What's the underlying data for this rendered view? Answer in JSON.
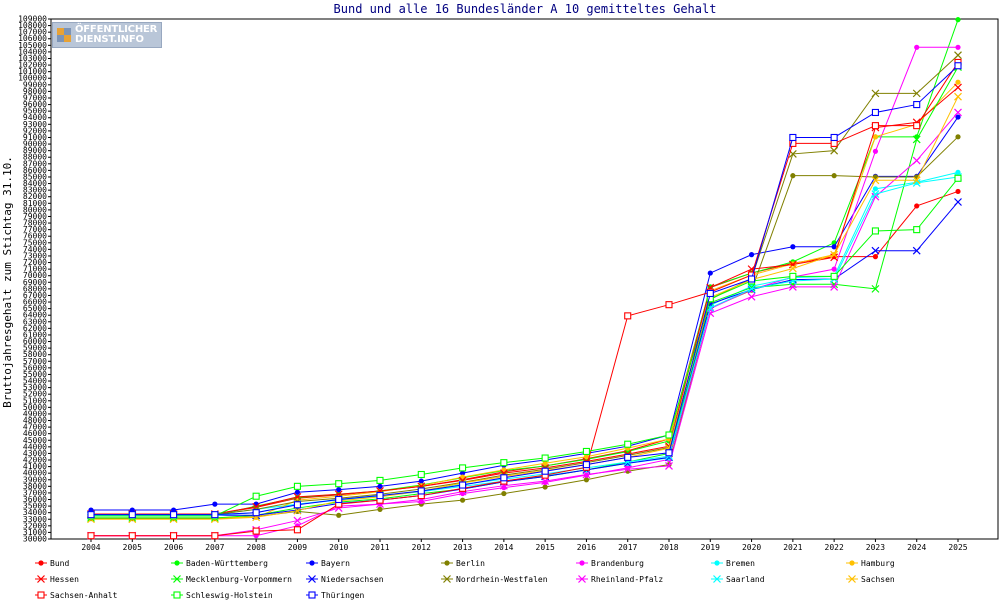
{
  "logo": {
    "line1": "ÖFFENTLICHER",
    "line2": "DIENST.INFO"
  },
  "chart_data": {
    "type": "line",
    "title": "Bund und alle 16 Bundesländer A 10 gemitteltes Gehalt",
    "xlabel": "",
    "ylabel": "Bruttojahresgehalt zum Stichtag 31.10.",
    "ylim": [
      30000,
      109000
    ],
    "ytick_step": 1000,
    "grid": false,
    "legend_position": "bottom",
    "x": [
      "2004",
      "2005",
      "2006",
      "2007",
      "2008",
      "2009",
      "2010",
      "2011",
      "2012",
      "2013",
      "2014",
      "2015",
      "2016",
      "2017",
      "2018",
      "2019",
      "2020",
      "2021",
      "2022",
      "2023",
      "2024",
      "2025"
    ],
    "series": [
      {
        "name": "Bund",
        "color": "#ff0000",
        "marker": "dot",
        "values": [
          33800,
          33800,
          33800,
          33800,
          34800,
          36200,
          36700,
          37300,
          38000,
          39000,
          40200,
          41100,
          42200,
          43400,
          45200,
          68200,
          70400,
          71900,
          72900,
          72900,
          80600,
          82800
        ]
      },
      {
        "name": "Baden-Württemberg",
        "color": "#00ff00",
        "marker": "dot",
        "values": [
          33600,
          33600,
          33600,
          33600,
          35000,
          36300,
          36800,
          37300,
          38200,
          39300,
          40400,
          41100,
          42100,
          43300,
          44900,
          68300,
          70400,
          72100,
          75000,
          91100,
          91100,
          108900
        ]
      },
      {
        "name": "Bayern",
        "color": "#0000ff",
        "marker": "dot",
        "values": [
          34400,
          34400,
          34400,
          35300,
          35300,
          37100,
          37500,
          38000,
          38800,
          40000,
          41200,
          42000,
          43000,
          44100,
          45800,
          70400,
          73200,
          74400,
          74400,
          85100,
          85100,
          94100
        ]
      },
      {
        "name": "Berlin",
        "color": "#808000",
        "marker": "dot",
        "values": [
          33100,
          33100,
          33100,
          33100,
          33400,
          34200,
          33600,
          34500,
          35300,
          35900,
          36900,
          37900,
          39000,
          40300,
          41300,
          65100,
          67800,
          85200,
          85200,
          85000,
          85000,
          91100
        ]
      },
      {
        "name": "Brandenburg",
        "color": "#ff00ff",
        "marker": "dot",
        "values": [
          30500,
          30500,
          30500,
          30500,
          30500,
          32000,
          35000,
          35300,
          35700,
          36900,
          37800,
          38600,
          39700,
          40800,
          42100,
          65000,
          67900,
          69800,
          71000,
          88900,
          104700,
          104700
        ]
      },
      {
        "name": "Bremen",
        "color": "#00ffff",
        "marker": "dot",
        "values": [
          33700,
          33700,
          33700,
          33700,
          34500,
          35300,
          35900,
          36500,
          37200,
          38000,
          38800,
          39600,
          40500,
          41500,
          42300,
          65500,
          68400,
          69700,
          69900,
          83200,
          84200,
          85700
        ]
      },
      {
        "name": "Hamburg",
        "color": "#ffc000",
        "marker": "dot",
        "values": [
          33200,
          33200,
          33200,
          33200,
          33300,
          35900,
          36500,
          37200,
          38100,
          39400,
          40500,
          41500,
          42500,
          43800,
          45200,
          67700,
          70100,
          71800,
          73200,
          91100,
          93000,
          99400
        ]
      },
      {
        "name": "Hessen",
        "color": "#ff0000",
        "marker": "x",
        "values": [
          33800,
          33800,
          33800,
          33800,
          34900,
          36400,
          36800,
          37300,
          38000,
          38900,
          40000,
          40800,
          41800,
          42900,
          44100,
          68200,
          71000,
          71700,
          72800,
          92500,
          93300,
          98600
        ]
      },
      {
        "name": "Mecklenburg-Vorpommern",
        "color": "#00ff00",
        "marker": "x",
        "values": [
          33200,
          33200,
          33200,
          33200,
          33600,
          34700,
          35600,
          36100,
          36900,
          37600,
          38700,
          39500,
          40500,
          41700,
          43000,
          65900,
          68200,
          68700,
          68700,
          68000,
          90700,
          101700
        ]
      },
      {
        "name": "Niedersachsen",
        "color": "#0000ff",
        "marker": "x",
        "values": [
          33600,
          33600,
          33600,
          33600,
          33600,
          34400,
          35400,
          35900,
          36600,
          37600,
          38700,
          39500,
          40500,
          41500,
          42400,
          65700,
          67900,
          69400,
          69500,
          73800,
          73800,
          81200
        ]
      },
      {
        "name": "Nordrhein-Westfalen",
        "color": "#808000",
        "marker": "x",
        "values": [
          33700,
          33700,
          33700,
          33700,
          34500,
          35700,
          36200,
          36800,
          37600,
          38600,
          39700,
          40600,
          41600,
          42700,
          43900,
          66400,
          69600,
          88500,
          89000,
          97700,
          97700,
          103500
        ]
      },
      {
        "name": "Rheinland-Pfalz",
        "color": "#ff00ff",
        "marker": "x",
        "values": [
          30500,
          30500,
          30500,
          30500,
          31400,
          32800,
          34700,
          35300,
          36000,
          37200,
          38100,
          38800,
          39800,
          40600,
          41100,
          64300,
          66800,
          68300,
          68300,
          82000,
          87500,
          94800
        ]
      },
      {
        "name": "Saarland",
        "color": "#00ffff",
        "marker": "x",
        "values": [
          33600,
          33600,
          33600,
          33600,
          34000,
          35300,
          36000,
          36600,
          37300,
          38300,
          39100,
          39900,
          40800,
          41700,
          42600,
          65100,
          68000,
          69200,
          69500,
          82400,
          84100,
          85000
        ]
      },
      {
        "name": "Sachsen",
        "color": "#ffc000",
        "marker": "x",
        "values": [
          33000,
          33000,
          33000,
          33000,
          33300,
          34300,
          35800,
          36400,
          37300,
          38500,
          39500,
          40400,
          41300,
          42400,
          43800,
          66700,
          69400,
          71100,
          73200,
          84500,
          84500,
          97200
        ]
      },
      {
        "name": "Sachsen-Anhalt",
        "color": "#ff0000",
        "marker": "square",
        "values": [
          30500,
          30500,
          30500,
          30500,
          31200,
          31400,
          35300,
          35900,
          36600,
          37700,
          38800,
          39700,
          40900,
          63900,
          65600,
          67500,
          70100,
          90100,
          90100,
          92800,
          92800,
          102400
        ]
      },
      {
        "name": "Schleswig-Holstein",
        "color": "#00ff00",
        "marker": "square",
        "values": [
          33500,
          33500,
          33500,
          33500,
          36500,
          38000,
          38400,
          38900,
          39800,
          40800,
          41600,
          42300,
          43300,
          44400,
          45800,
          66500,
          69200,
          69900,
          69900,
          76800,
          77000,
          84800
        ]
      },
      {
        "name": "Thüringen",
        "color": "#0000ff",
        "marker": "square",
        "values": [
          33700,
          33700,
          33700,
          33700,
          34000,
          35200,
          36000,
          36600,
          37300,
          38200,
          39300,
          40300,
          41300,
          42400,
          43100,
          67300,
          69500,
          91000,
          91000,
          94800,
          96000,
          101900
        ]
      }
    ]
  }
}
